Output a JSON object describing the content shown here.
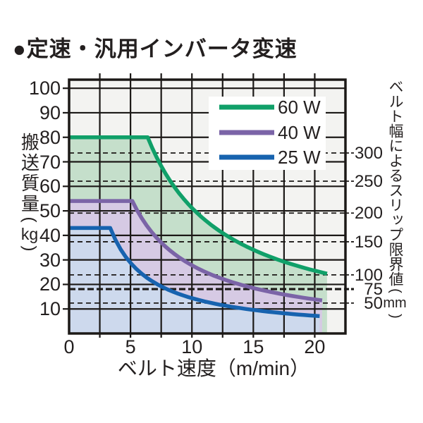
{
  "title": "●定速・汎用インバータ変速",
  "colors": {
    "page_bg": "#ffffff",
    "plot_bg": "#f3f3f1",
    "grid": "#1c1917",
    "text": "#231f1f",
    "legend_bg": "#ffffff"
  },
  "chart_data": {
    "type": "area",
    "title": "●定速・汎用インバータ変速",
    "xlabel": "ベルト速度（m/min）",
    "ylabel": "搬送質量（kg）",
    "ylabel_main": "搬送質量",
    "ylabel_unit": "kg",
    "right_axis_label": "ベルト幅によるスリップ限界値（mm）",
    "right_axis_label_main": "ベルト幅によるスリップ限界値",
    "right_axis_label_unit": "mm",
    "paren_open": "(",
    "paren_close": ")",
    "xlim": [
      0,
      22.5
    ],
    "ylim": [
      0,
      103.5
    ],
    "x_grid_step": 2.5,
    "y_grid_step": 10,
    "x_tick_labels": [
      0,
      5,
      10,
      15,
      20
    ],
    "y_tick_labels": [
      100,
      90,
      80,
      70,
      60,
      50,
      40,
      30,
      20,
      10
    ],
    "grid": true,
    "legend_position": "top-right-inside",
    "series": [
      {
        "name": "60 W",
        "power_w": 60,
        "color": "#10a069",
        "fill": "#c5dfcb",
        "flat_kg": 80,
        "flat_until_m_min": 6.4,
        "hyperbola_k": 512,
        "x_end": 21.0,
        "y_end": 24.4,
        "points": [
          [
            0,
            80
          ],
          [
            6.4,
            80
          ],
          [
            8,
            64
          ],
          [
            10,
            51.2
          ],
          [
            12,
            42.7
          ],
          [
            15,
            34.1
          ],
          [
            18,
            28.4
          ],
          [
            20,
            25.6
          ],
          [
            21,
            24.4
          ]
        ]
      },
      {
        "name": "40 W",
        "power_w": 40,
        "color": "#7b64a7",
        "fill": "#d6cae4",
        "flat_kg": 54,
        "flat_until_m_min": 5.15,
        "hyperbola_k": 278,
        "x_end": 20.6,
        "y_end": 13.5,
        "points": [
          [
            0,
            54
          ],
          [
            5.15,
            54
          ],
          [
            8,
            34.8
          ],
          [
            10,
            27.8
          ],
          [
            12,
            23.2
          ],
          [
            15,
            18.5
          ],
          [
            18,
            15.4
          ],
          [
            20,
            13.9
          ],
          [
            20.6,
            13.5
          ]
        ]
      },
      {
        "name": "25 W",
        "power_w": 25,
        "color": "#1763af",
        "fill": "#cdd9ed",
        "flat_kg": 43,
        "flat_until_m_min": 3.35,
        "hyperbola_k": 144,
        "x_end": 20.4,
        "y_end": 7.1,
        "points": [
          [
            0,
            43
          ],
          [
            3.35,
            43
          ],
          [
            5,
            28.8
          ],
          [
            8,
            18
          ],
          [
            10,
            14.4
          ],
          [
            12,
            12
          ],
          [
            15,
            9.6
          ],
          [
            18,
            8
          ],
          [
            20.4,
            7.1
          ]
        ]
      }
    ],
    "right_axis_ticks": [
      {
        "label": "300",
        "kg": 73.6,
        "bold": false
      },
      {
        "label": "250",
        "kg": 62.1,
        "bold": false
      },
      {
        "label": "200",
        "kg": 49.1,
        "bold": false
      },
      {
        "label": "150",
        "kg": 37.4,
        "bold": false
      },
      {
        "label": "100",
        "kg": 23.9,
        "bold": false
      },
      {
        "label": "75",
        "kg": 18.1,
        "bold": true
      },
      {
        "label": "50",
        "kg": 12.4,
        "bold": false
      }
    ]
  }
}
